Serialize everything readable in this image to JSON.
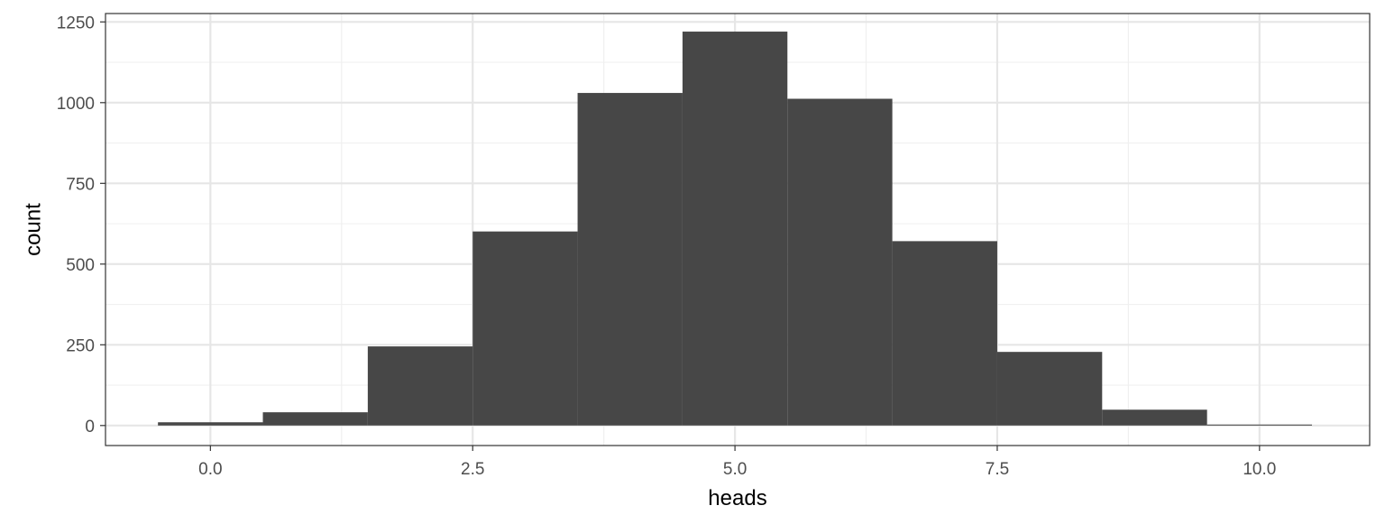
{
  "chart_data": {
    "type": "bar",
    "title": "",
    "xlabel": "heads",
    "ylabel": "count",
    "x_centers": [
      0,
      1,
      2,
      3,
      4,
      5,
      6,
      7,
      8,
      9,
      10
    ],
    "bin_width": 1,
    "values": [
      10,
      41,
      245,
      601,
      1030,
      1220,
      1012,
      571,
      228,
      49,
      3
    ],
    "xlim": [
      -1.0,
      11.05
    ],
    "ylim": [
      -62,
      1276
    ],
    "x_ticks": [
      0.0,
      2.5,
      5.0,
      7.5,
      10.0
    ],
    "x_tick_labels": [
      "0.0",
      "2.5",
      "5.0",
      "7.5",
      "10.0"
    ],
    "y_ticks": [
      0,
      250,
      500,
      750,
      1000,
      1250
    ],
    "y_tick_labels": [
      "0",
      "250",
      "500",
      "750",
      "1000",
      "1250"
    ],
    "grid": true,
    "theme": "bw",
    "bar_color": "#474747"
  }
}
